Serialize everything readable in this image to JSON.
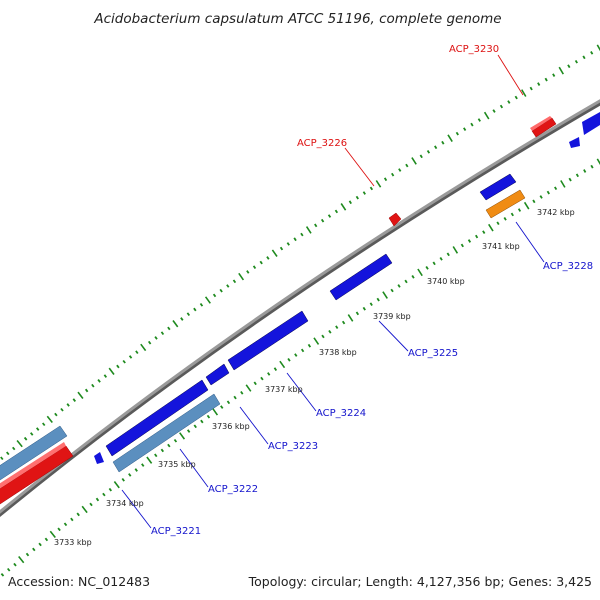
{
  "header": {
    "title": "Acidobacterium capsulatum ATCC 51196, complete genome"
  },
  "footer": {
    "accession": "Accession: NC_012483",
    "topology": "Topology: circular; Length: 4,127,356 bp; Genes: 3,425"
  },
  "colors": {
    "forward_gene": "#1414dc",
    "reverse_gene": "#e01414",
    "rna_gene": "#5b8fbf",
    "highlight_gene": "#f08c14",
    "backbone": "#8a8a8a",
    "tick": "#1e8a1e",
    "label_forward": "#1414cc",
    "label_reverse": "#dd1111"
  },
  "scale_ticks": [
    {
      "label": "3733 kbp"
    },
    {
      "label": "3734 kbp"
    },
    {
      "label": "3735 kbp"
    },
    {
      "label": "3736 kbp"
    },
    {
      "label": "3737 kbp"
    },
    {
      "label": "3738 kbp"
    },
    {
      "label": "3739 kbp"
    },
    {
      "label": "3740 kbp"
    },
    {
      "label": "3741 kbp"
    },
    {
      "label": "3742 kbp"
    }
  ],
  "gene_labels": [
    {
      "label": "ACP_3230",
      "strand": "reverse"
    },
    {
      "label": "ACP_3226",
      "strand": "reverse"
    },
    {
      "label": "ACP_3228",
      "strand": "forward"
    },
    {
      "label": "ACP_3225",
      "strand": "forward"
    },
    {
      "label": "ACP_3224",
      "strand": "forward"
    },
    {
      "label": "ACP_3223",
      "strand": "forward"
    },
    {
      "label": "ACP_3222",
      "strand": "forward"
    },
    {
      "label": "ACP_3221",
      "strand": "forward"
    }
  ]
}
